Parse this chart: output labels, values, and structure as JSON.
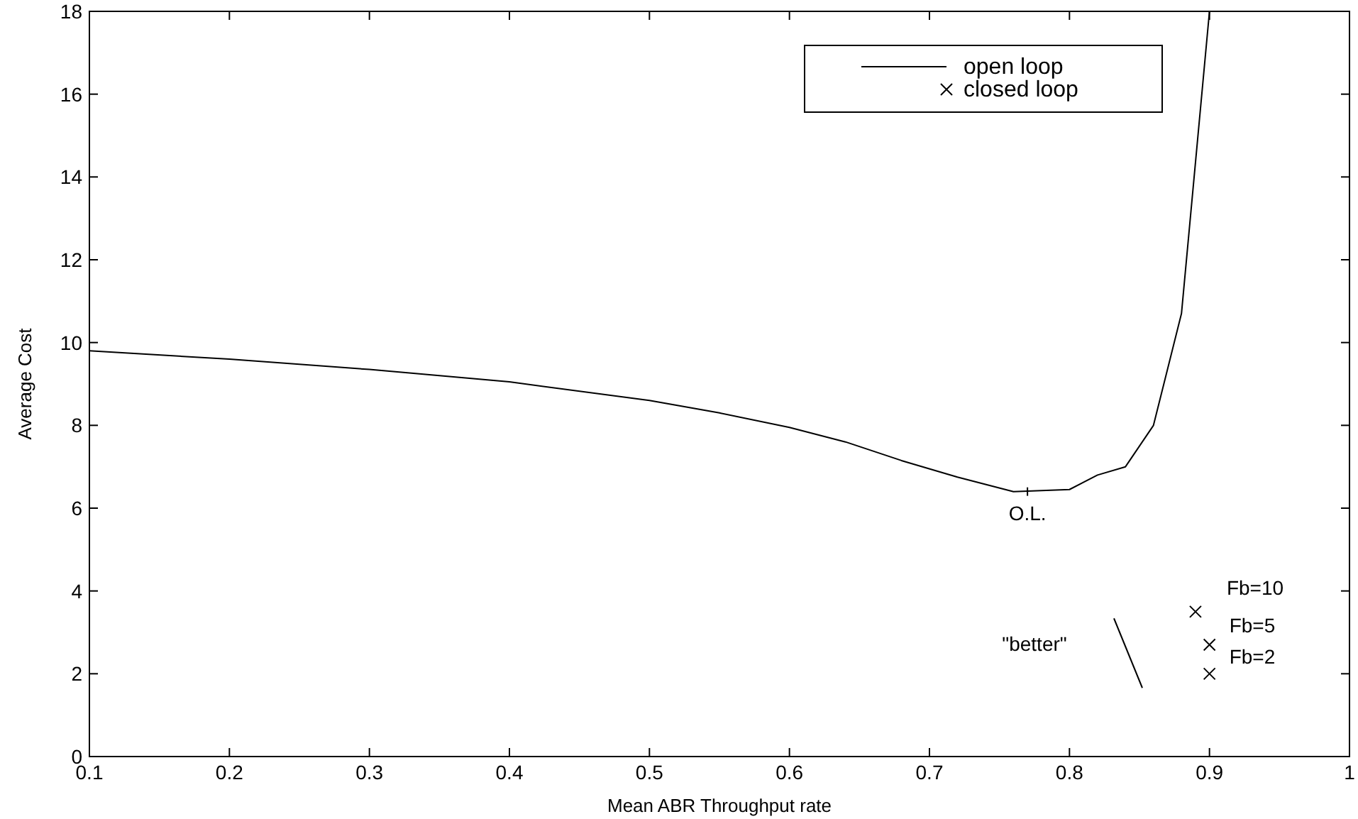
{
  "chart_data": {
    "type": "line",
    "xlabel": "Mean ABR Throughput rate",
    "ylabel": "Average Cost",
    "xlim": [
      0.1,
      1
    ],
    "xticks": [
      0.1,
      0.2,
      0.3,
      0.4,
      0.5,
      0.6,
      0.7,
      0.8,
      0.9,
      1
    ],
    "ylim": [
      0,
      18
    ],
    "yticks": [
      0,
      2,
      4,
      6,
      8,
      10,
      12,
      14,
      16,
      18
    ],
    "grid": false,
    "legend": "top right",
    "series": [
      {
        "name": "open loop",
        "color": "#000000",
        "marker": "none",
        "line_style": "solid",
        "x": [
          0.1,
          0.2,
          0.3,
          0.4,
          0.5,
          0.55,
          0.6,
          0.64,
          0.68,
          0.72,
          0.76,
          0.8,
          0.82,
          0.84,
          0.86,
          0.88,
          0.9
        ],
        "values": [
          9.8,
          9.6,
          9.35,
          9.05,
          8.6,
          8.3,
          7.95,
          7.6,
          7.15,
          6.75,
          6.4,
          6.45,
          6.8,
          7.0,
          8.0,
          10.7,
          18
        ]
      },
      {
        "name": "closed loop",
        "type": "scatter",
        "color": "#000000",
        "marker": "cross",
        "x": [
          0.89,
          0.9,
          0.9
        ],
        "values": [
          3.5,
          2.7,
          2.0
        ]
      }
    ],
    "annotations": [
      {
        "text": "O.L.",
        "x": 0.77,
        "y": 6.4
      },
      {
        "text": "Fb=10",
        "x": 0.89,
        "y": 3.5
      },
      {
        "text": "Fb=5",
        "x": 0.9,
        "y": 2.7
      },
      {
        "text": "Fb=2",
        "x": 0.9,
        "y": 2.0
      },
      "\"better\""
    ]
  }
}
